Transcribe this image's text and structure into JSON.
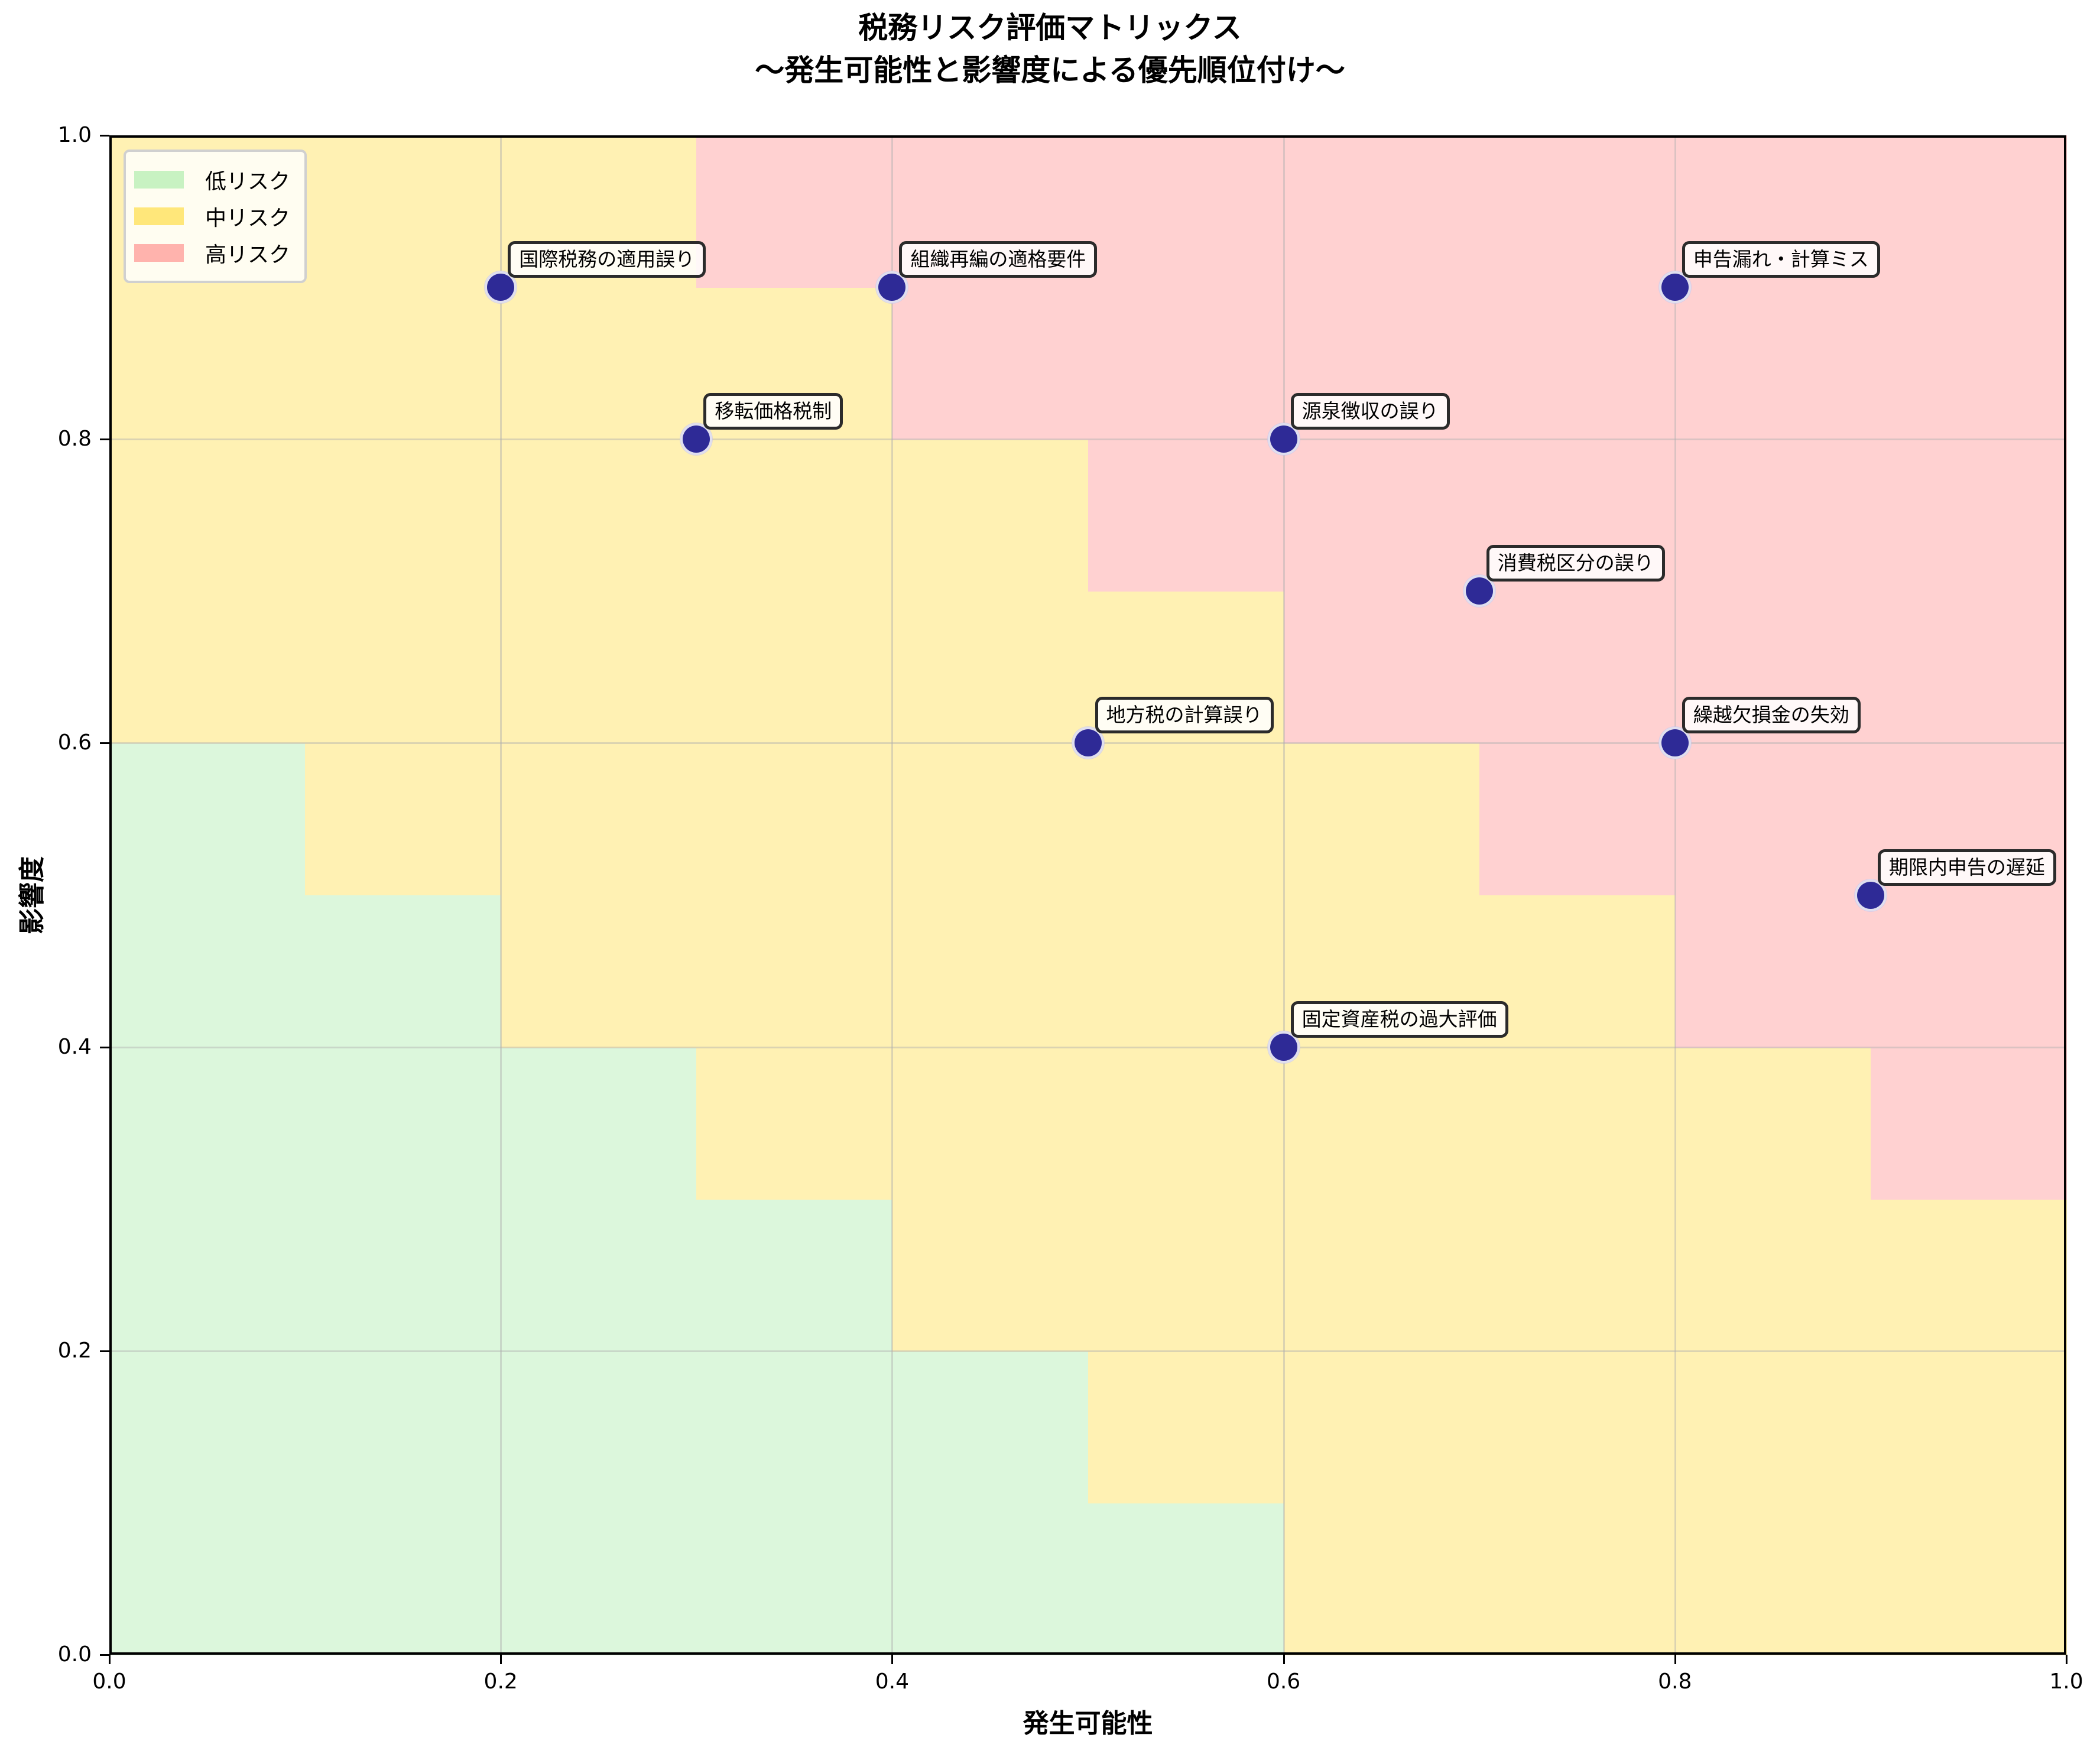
{
  "chart_data": {
    "type": "scatter",
    "title": "税務リスク評価マトリックス",
    "subtitle": "〜発生可能性と影響度による優先順位付け〜",
    "xlabel": "発生可能性",
    "ylabel": "影響度",
    "xlim": [
      0.0,
      1.0
    ],
    "ylim": [
      0.0,
      1.0
    ],
    "xticks": [
      "0.0",
      "0.2",
      "0.4",
      "0.6",
      "0.8",
      "1.0"
    ],
    "yticks": [
      "0.0",
      "0.2",
      "0.4",
      "0.6",
      "0.8",
      "1.0"
    ],
    "grid": true,
    "legend_position": "upper left",
    "legend": [
      {
        "label": "低リスク",
        "color": "#c8f2c2"
      },
      {
        "label": "中リスク",
        "color": "#ffe77a"
      },
      {
        "label": "高リスク",
        "color": "#ffb3ad"
      }
    ],
    "background_zones": {
      "cell_size": 0.1,
      "rule": "cell index sum (i+j) <= 5 low, 6-11 medium, >= 12 high",
      "colors": {
        "low": "#dcf7dc",
        "medium": "#fff1b3",
        "high": "#ffd1d1"
      }
    },
    "point_color": "#2e2a96",
    "points": [
      {
        "label": "申告漏れ・計算ミス",
        "x": 0.8,
        "y": 0.9
      },
      {
        "label": "源泉徴収の誤り",
        "x": 0.6,
        "y": 0.8
      },
      {
        "label": "消費税区分の誤り",
        "x": 0.7,
        "y": 0.7
      },
      {
        "label": "移転価格税制",
        "x": 0.3,
        "y": 0.8
      },
      {
        "label": "国際税務の適用誤り",
        "x": 0.2,
        "y": 0.9
      },
      {
        "label": "固定資産税の過大評価",
        "x": 0.6,
        "y": 0.4
      },
      {
        "label": "地方税の計算誤り",
        "x": 0.5,
        "y": 0.6
      },
      {
        "label": "繰越欠損金の失効",
        "x": 0.8,
        "y": 0.6
      },
      {
        "label": "組織再編の適格要件",
        "x": 0.4,
        "y": 0.9
      },
      {
        "label": "期限内申告の遅延",
        "x": 0.9,
        "y": 0.5
      }
    ]
  }
}
